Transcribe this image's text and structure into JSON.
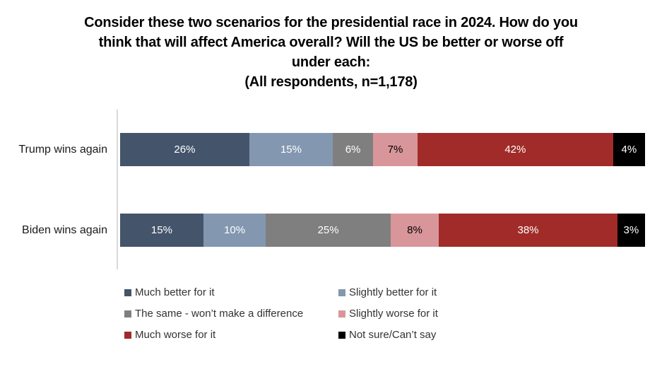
{
  "title": {
    "lines": [
      "Consider these two scenarios for the presidential race in 2024. How do you",
      "think that will affect America overall? Will the US be better or worse off",
      "under each:",
      "(All respondents, n=1,178)"
    ]
  },
  "chart_data": {
    "type": "bar",
    "variant": "horizontal-stacked",
    "title": "Consider these two scenarios for the presidential race in 2024. How do you think that will affect America overall? Will the US be better or worse off under each: (All respondents, n=1,178)",
    "categories": [
      "Trump wins again",
      "Biden wins again"
    ],
    "series": [
      {
        "name": "Much better for it",
        "color": "#44546A",
        "label_text_color": "#FFFFFF",
        "values": [
          26,
          15
        ]
      },
      {
        "name": "Slightly better for it",
        "color": "#8497B0",
        "label_text_color": "#FFFFFF",
        "values": [
          15,
          10
        ]
      },
      {
        "name": "The same - won’t make a difference",
        "color": "#7F7F7F",
        "label_text_color": "#FFFFFF",
        "values": [
          6,
          25
        ]
      },
      {
        "name": "Slightly worse for it",
        "color": "#D9969A",
        "label_text_color": "#000000",
        "values": [
          7,
          8
        ]
      },
      {
        "name": "Much worse for it",
        "color": "#A02B28",
        "label_text_color": "#FFFFFF",
        "values": [
          42,
          38
        ]
      },
      {
        "name": "Not sure/Can’t say",
        "color": "#000000",
        "label_text_color": "#FFFFFF",
        "values": [
          4,
          3
        ]
      }
    ],
    "value_suffix": "%",
    "xlim": [
      0,
      100
    ],
    "grid": false,
    "legend_position": "bottom",
    "axis_line_color": "#D9D9D9"
  }
}
